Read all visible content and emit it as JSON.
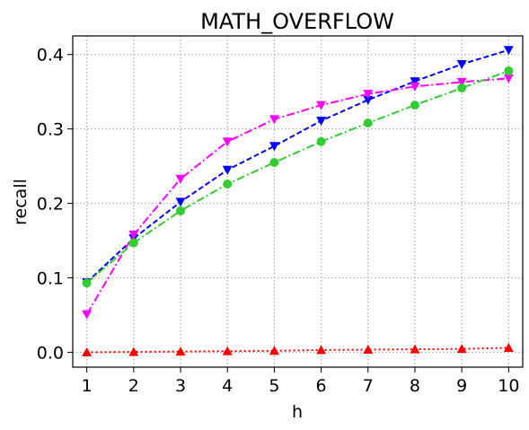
{
  "chart_data": {
    "type": "line",
    "title": "MATH_OVERFLOW",
    "xlabel": "h",
    "ylabel": "recall",
    "x": [
      1,
      2,
      3,
      4,
      5,
      6,
      7,
      8,
      9,
      10
    ],
    "xlim": [
      0.7,
      10.3
    ],
    "ylim": [
      -0.02,
      0.425
    ],
    "yticks": [
      0.0,
      0.1,
      0.2,
      0.3,
      0.4
    ],
    "ytick_labels": [
      "0.0",
      "0.1",
      "0.2",
      "0.3",
      "0.4"
    ],
    "xtick_labels": [
      "1",
      "2",
      "3",
      "4",
      "5",
      "6",
      "7",
      "8",
      "9",
      "10"
    ],
    "grid": true,
    "legend": false,
    "series": [
      {
        "color": "#0000ff",
        "line_style": "dashed",
        "marker": "triangle-down",
        "values": [
          0.094,
          0.153,
          0.202,
          0.245,
          0.277,
          0.311,
          0.339,
          0.364,
          0.387,
          0.406
        ]
      },
      {
        "color": "#ff00ff",
        "line_style": "dash-dot",
        "marker": "triangle-down",
        "values": [
          0.051,
          0.158,
          0.233,
          0.283,
          0.313,
          0.332,
          0.347,
          0.357,
          0.363,
          0.368
        ]
      },
      {
        "color": "#32cd32",
        "line_style": "dash-dot",
        "marker": "circle",
        "values": [
          0.093,
          0.147,
          0.19,
          0.226,
          0.255,
          0.283,
          0.308,
          0.332,
          0.355,
          0.378
        ]
      },
      {
        "color": "#ff0000",
        "line_style": "dotted",
        "marker": "triangle-up",
        "values": [
          0.0,
          0.0005,
          0.001,
          0.0015,
          0.002,
          0.003,
          0.0035,
          0.004,
          0.0045,
          0.006
        ]
      }
    ]
  }
}
